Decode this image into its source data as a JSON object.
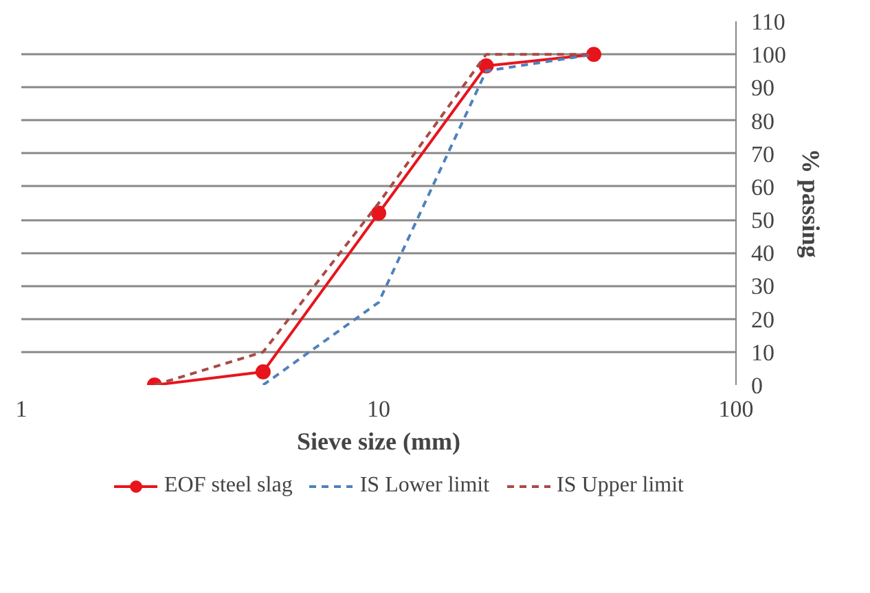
{
  "chart_data": {
    "type": "line",
    "xlabel": "Sieve size (mm)",
    "ylabel": "% passing",
    "log": "x",
    "xlim": [
      1,
      100
    ],
    "xticks": [
      1,
      10,
      100
    ],
    "ylim": [
      0,
      110
    ],
    "yticks": [
      0,
      10,
      20,
      30,
      40,
      50,
      60,
      70,
      80,
      90,
      100,
      110
    ],
    "grid": "y",
    "legend": "bottom",
    "series": [
      {
        "name": "EOF steel slag",
        "color": "#e8141c",
        "x": [
          2.36,
          4.75,
          10,
          20,
          40
        ],
        "values": [
          0,
          4,
          52,
          96.5,
          100
        ],
        "marker": "circle",
        "line_style": "solid"
      },
      {
        "name": "IS Lower limit",
        "color": "#4f81bd",
        "x": [
          4.75,
          10,
          20,
          40
        ],
        "values": [
          0,
          25,
          95,
          100
        ],
        "marker": "none",
        "line_style": "dashed"
      },
      {
        "name": "IS Upper limit",
        "color": "#a94a45",
        "x": [
          2.36,
          4.75,
          10,
          20,
          40
        ],
        "values": [
          0,
          10,
          55,
          100,
          100
        ],
        "marker": "none",
        "line_style": "dashed"
      }
    ]
  }
}
